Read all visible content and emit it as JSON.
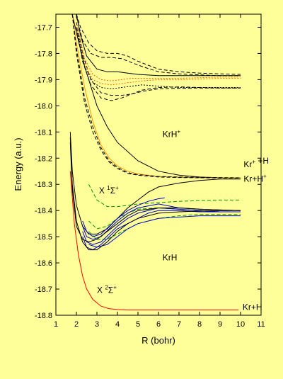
{
  "chart_data": {
    "type": "line",
    "title": "",
    "xlabel": "R (bohr)",
    "ylabel": "Energy (a.u.)",
    "xlim": [
      1,
      11
    ],
    "ylim": [
      -18.8,
      -17.65
    ],
    "xticks": [
      "1",
      "2",
      "3",
      "4",
      "5",
      "6",
      "7",
      "8",
      "9",
      "10",
      "11"
    ],
    "yticks": [
      "-17.7",
      "-17.8",
      "-17.9",
      "-18.0",
      "-18.1",
      "-18.2",
      "-18.3",
      "-18.4",
      "-18.5",
      "-18.6",
      "-18.7",
      "-18.8"
    ],
    "grid": false,
    "annotations": [
      {
        "text": "KrH+",
        "x": 6.2,
        "y": -18.12
      },
      {
        "text": "Kr+ +H",
        "x": 10.15,
        "y": -18.235
      },
      {
        "text": "Kr+H+",
        "x": 10.15,
        "y": -18.29
      },
      {
        "text": "X 1Σ+",
        "x": 3.1,
        "y": -18.335
      },
      {
        "text": "KrH",
        "x": 6.2,
        "y": -18.59
      },
      {
        "text": "X 2Σ+",
        "x": 3.0,
        "y": -18.715
      },
      {
        "text": "Kr+H",
        "x": 10.1,
        "y": -18.78
      }
    ],
    "series": [
      {
        "color": "#FF0000",
        "style": "solid",
        "x": [
          1.7,
          1.9,
          2.1,
          2.3,
          2.5,
          2.8,
          3.2,
          3.6,
          4.0,
          4.5,
          5.0,
          6.0,
          7.0,
          8.0,
          9.0,
          9.9
        ],
        "y": [
          -18.25,
          -18.45,
          -18.57,
          -18.65,
          -18.7,
          -18.74,
          -18.765,
          -18.775,
          -18.778,
          -18.78,
          -18.78,
          -18.78,
          -18.78,
          -18.78,
          -18.78,
          -18.78
        ]
      },
      {
        "color": "#000000",
        "style": "solid",
        "x": [
          1.7,
          1.8,
          2.0,
          2.3,
          2.6,
          3.0,
          3.5,
          4.0,
          4.5,
          5.0,
          5.5,
          6.0,
          7.0,
          8.0,
          9.0,
          10.0
        ],
        "y": [
          -18.1,
          -18.25,
          -18.38,
          -18.46,
          -18.49,
          -18.49,
          -18.47,
          -18.43,
          -18.39,
          -18.36,
          -18.33,
          -18.31,
          -18.295,
          -18.285,
          -18.28,
          -18.28
        ]
      },
      {
        "color": "#000000",
        "style": "solid",
        "x": [
          1.8,
          2.0,
          2.4,
          3.0,
          3.5,
          4.0,
          5.0,
          6.0,
          7.0,
          8.0,
          9.0,
          10.0
        ],
        "y": [
          -17.65,
          -17.72,
          -17.85,
          -18.0,
          -18.08,
          -18.14,
          -18.21,
          -18.25,
          -18.265,
          -18.272,
          -18.275,
          -18.275
        ]
      },
      {
        "color": "#FF9900",
        "style": "solid",
        "x": [
          1.8,
          2.0,
          2.4,
          2.8,
          3.2,
          3.6,
          4.0,
          4.5,
          5.0,
          5.5,
          6.0,
          7.0,
          8.0,
          10.0
        ],
        "y": [
          -17.65,
          -17.76,
          -17.93,
          -18.06,
          -18.15,
          -18.2,
          -18.23,
          -18.25,
          -18.26,
          -18.265,
          -18.27,
          -18.272,
          -18.275,
          -18.275
        ]
      },
      {
        "color": "#000000",
        "style": "dashed",
        "x": [
          1.8,
          2.0,
          2.4,
          2.8,
          3.2,
          3.6,
          4.0,
          4.5,
          5.0,
          6.0,
          7.0,
          8.0,
          10.0
        ],
        "y": [
          -17.65,
          -17.78,
          -17.97,
          -18.08,
          -18.16,
          -18.21,
          -18.235,
          -18.255,
          -18.263,
          -18.27,
          -18.272,
          -18.273,
          -18.275
        ]
      },
      {
        "color": "#000000",
        "style": "dashed",
        "x": [
          1.8,
          2.0,
          2.4,
          2.8,
          3.2,
          3.6,
          4.0,
          4.5,
          5.0,
          6.0,
          7.0,
          8.0,
          10.0
        ],
        "y": [
          -17.65,
          -17.8,
          -17.99,
          -18.1,
          -18.17,
          -18.215,
          -18.24,
          -18.258,
          -18.265,
          -18.272,
          -18.274,
          -18.275,
          -18.276
        ]
      },
      {
        "color": "#000000",
        "style": "solid",
        "x": [
          2.0,
          2.2,
          2.5,
          3.0,
          3.5,
          4.0,
          4.5,
          5.0,
          6.0,
          7.0,
          8.0,
          9.0,
          10.0
        ],
        "y": [
          -17.65,
          -17.73,
          -17.81,
          -17.86,
          -17.87,
          -17.87,
          -17.875,
          -17.88,
          -17.885,
          -17.885,
          -17.885,
          -17.885,
          -17.885
        ]
      },
      {
        "color": "#000000",
        "style": "dashed",
        "x": [
          2.0,
          2.2,
          2.6,
          3.0,
          3.5,
          4.0,
          4.5,
          5.0,
          6.0,
          7.0,
          8.0,
          9.0,
          10.0
        ],
        "y": [
          -17.65,
          -17.7,
          -17.76,
          -17.79,
          -17.8,
          -17.8,
          -17.81,
          -17.83,
          -17.86,
          -17.87,
          -17.875,
          -17.878,
          -17.88
        ]
      },
      {
        "color": "#000000",
        "style": "dashed",
        "x": [
          2.0,
          2.3,
          2.7,
          3.2,
          3.7,
          4.2,
          4.7,
          5.2,
          6.0,
          7.0,
          8.0,
          9.0,
          10.0
        ],
        "y": [
          -17.66,
          -17.75,
          -17.8,
          -17.815,
          -17.815,
          -17.82,
          -17.835,
          -17.85,
          -17.87,
          -17.878,
          -17.882,
          -17.885,
          -17.885
        ]
      },
      {
        "color": "#000000",
        "style": "dashed",
        "x": [
          2.0,
          2.3,
          2.7,
          3.2,
          3.7,
          4.2,
          4.7,
          5.2,
          6.0,
          7.0,
          8.0,
          9.0,
          10.0
        ],
        "y": [
          -17.68,
          -17.8,
          -17.9,
          -17.95,
          -17.96,
          -17.96,
          -17.955,
          -17.945,
          -17.935,
          -17.933,
          -17.932,
          -17.932,
          -17.932
        ]
      },
      {
        "color": "#000000",
        "style": "dashed",
        "x": [
          2.0,
          2.3,
          2.7,
          3.2,
          3.7,
          4.2,
          4.7,
          5.2,
          6.0,
          7.0,
          8.0,
          9.0,
          10.0
        ],
        "y": [
          -17.7,
          -17.83,
          -17.92,
          -17.97,
          -17.98,
          -17.97,
          -17.955,
          -17.94,
          -17.93,
          -17.928,
          -17.93,
          -17.932,
          -17.932
        ]
      },
      {
        "color": "#FF6600",
        "style": "dotted",
        "x": [
          2.0,
          2.4,
          2.8,
          3.2,
          3.7,
          4.2,
          4.7,
          5.2,
          6.0,
          7.0,
          8.0,
          9.0,
          10.0
        ],
        "y": [
          -17.68,
          -17.82,
          -17.88,
          -17.9,
          -17.905,
          -17.9,
          -17.895,
          -17.895,
          -17.895,
          -17.895,
          -17.893,
          -17.89,
          -17.89
        ]
      },
      {
        "color": "#FF6600",
        "style": "dotted",
        "x": [
          2.0,
          2.4,
          2.8,
          3.2,
          3.7,
          4.2,
          4.7,
          5.2,
          6.0,
          7.0,
          8.0,
          9.0,
          10.0
        ],
        "y": [
          -17.7,
          -17.84,
          -17.9,
          -17.915,
          -17.92,
          -17.915,
          -17.91,
          -17.905,
          -17.9,
          -17.9,
          -17.898,
          -17.895,
          -17.895
        ]
      },
      {
        "color": "#000000",
        "style": "dotted",
        "x": [
          2.0,
          2.4,
          2.8,
          3.2,
          3.7,
          4.2,
          4.7,
          5.2,
          6.0,
          7.0,
          8.0,
          9.0,
          10.0
        ],
        "y": [
          -17.7,
          -17.85,
          -17.91,
          -17.93,
          -17.935,
          -17.93,
          -17.925,
          -17.92,
          -17.925,
          -17.93,
          -17.93,
          -17.93,
          -17.93
        ]
      },
      {
        "color": "#009900",
        "style": "dashed",
        "x": [
          2.6,
          3.0,
          3.5,
          4.0,
          4.5,
          5.0,
          6.0,
          7.0,
          8.0,
          9.0,
          10.0
        ],
        "y": [
          -18.3,
          -18.36,
          -18.385,
          -18.385,
          -18.38,
          -18.375,
          -18.37,
          -18.365,
          -18.362,
          -18.36,
          -18.36
        ]
      },
      {
        "color": "#009900",
        "style": "dashed",
        "x": [
          2.6,
          3.0,
          3.5,
          4.0,
          4.5,
          5.0,
          6.0,
          7.0,
          8.0,
          9.0,
          10.0
        ],
        "y": [
          -18.48,
          -18.51,
          -18.51,
          -18.49,
          -18.47,
          -18.45,
          -18.43,
          -18.42,
          -18.415,
          -18.415,
          -18.415
        ]
      },
      {
        "color": "#009900",
        "style": "dashed",
        "x": [
          2.6,
          3.0,
          3.5,
          4.0,
          4.5,
          5.0,
          6.0,
          7.0,
          8.0,
          9.0,
          10.0
        ],
        "y": [
          -18.44,
          -18.47,
          -18.46,
          -18.43,
          -18.41,
          -18.395,
          -18.39,
          -18.395,
          -18.4,
          -18.405,
          -18.405
        ]
      },
      {
        "color": "#0000CC",
        "style": "solid",
        "x": [
          2.3,
          2.5,
          2.8,
          3.2,
          3.6,
          4.0,
          4.5,
          5.0,
          5.5,
          6.0,
          6.3
        ],
        "y": [
          -18.44,
          -18.48,
          -18.5,
          -18.49,
          -18.46,
          -18.43,
          -18.4,
          -18.38,
          -18.365,
          -18.355,
          -18.352
        ]
      },
      {
        "color": "#0000CC",
        "style": "solid",
        "x": [
          2.3,
          2.5,
          2.8,
          3.2,
          3.6,
          4.0,
          4.5,
          5.0,
          6.0,
          7.0,
          8.0,
          9.0,
          10.0
        ],
        "y": [
          -18.46,
          -18.5,
          -18.51,
          -18.5,
          -18.47,
          -18.44,
          -18.41,
          -18.39,
          -18.375,
          -18.39,
          -18.395,
          -18.398,
          -18.4
        ]
      },
      {
        "color": "#0000CC",
        "style": "solid",
        "x": [
          2.3,
          2.5,
          2.8,
          3.2,
          3.6,
          4.0,
          4.5,
          5.0,
          6.0,
          7.0,
          8.0,
          9.0,
          10.0
        ],
        "y": [
          -18.48,
          -18.52,
          -18.53,
          -18.52,
          -18.49,
          -18.46,
          -18.43,
          -18.41,
          -18.39,
          -18.395,
          -18.4,
          -18.405,
          -18.405
        ]
      },
      {
        "color": "#0000CC",
        "style": "solid",
        "x": [
          2.3,
          2.5,
          2.8,
          3.2,
          3.6,
          4.0,
          4.5,
          5.0,
          5.5,
          6.0,
          7.0,
          8.0,
          9.0,
          10.0
        ],
        "y": [
          -18.5,
          -18.54,
          -18.55,
          -18.53,
          -18.5,
          -18.47,
          -18.45,
          -18.43,
          -18.41,
          -18.4,
          -18.4,
          -18.405,
          -18.405,
          -18.405
        ]
      },
      {
        "color": "#0000CC",
        "style": "solid",
        "x": [
          2.6,
          3.0,
          3.5,
          4.0,
          4.5,
          5.0,
          5.5,
          6.0,
          7.0,
          8.0,
          9.0,
          10.0
        ],
        "y": [
          -18.53,
          -18.54,
          -18.53,
          -18.5,
          -18.47,
          -18.45,
          -18.44,
          -18.43,
          -18.425,
          -18.42,
          -18.42,
          -18.42
        ]
      },
      {
        "color": "#000000",
        "style": "solid",
        "x": [
          1.7,
          1.8,
          2.0,
          2.3,
          2.6,
          3.0,
          3.5,
          4.0,
          4.5,
          5.0,
          6.0,
          7.0,
          8.0,
          9.0,
          10.0
        ],
        "y": [
          -18.12,
          -18.3,
          -18.44,
          -18.52,
          -18.55,
          -18.55,
          -18.52,
          -18.48,
          -18.45,
          -18.43,
          -18.41,
          -18.405,
          -18.402,
          -18.4,
          -18.4
        ]
      },
      {
        "color": "#000000",
        "style": "solid",
        "x": [
          1.7,
          1.8,
          2.0,
          2.3,
          2.6,
          3.0,
          3.5,
          4.0,
          4.5,
          5.0,
          6.0,
          7.0,
          8.0,
          9.0,
          10.0
        ],
        "y": [
          -18.14,
          -18.32,
          -18.46,
          -18.51,
          -18.52,
          -18.51,
          -18.48,
          -18.45,
          -18.42,
          -18.4,
          -18.39,
          -18.39,
          -18.395,
          -18.398,
          -18.4
        ]
      }
    ]
  }
}
